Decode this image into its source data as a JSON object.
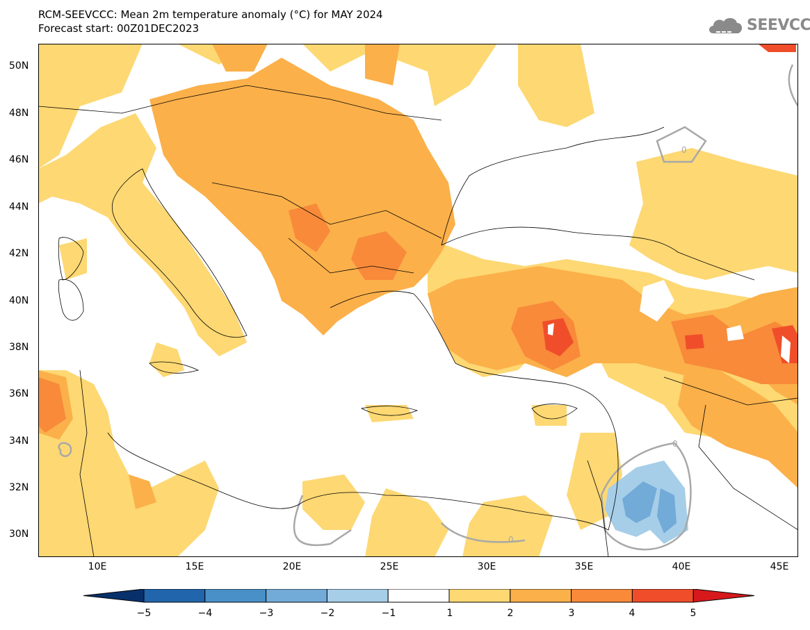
{
  "title": {
    "line1": "RCM-SEEVCCC: Mean 2m temperature anomaly (°C) for MAY 2024",
    "line2": "Forecast start: 00Z01DEC2023"
  },
  "logo": {
    "text": "SEEVCCC",
    "icon": "cloud-icon",
    "color": "#8a8a8a"
  },
  "map": {
    "lon_range": [
      7,
      46
    ],
    "lat_range": [
      29,
      51
    ],
    "lat_ticks": [
      "50N",
      "48N",
      "46N",
      "44N",
      "42N",
      "40N",
      "38N",
      "36N",
      "34N",
      "32N",
      "30N"
    ],
    "lon_ticks": [
      "10E",
      "15E",
      "20E",
      "25E",
      "30E",
      "35E",
      "40E",
      "45E"
    ],
    "contour_label": "0"
  },
  "colorbar": {
    "labels": [
      "−5",
      "−4",
      "−3",
      "−2",
      "−1",
      "1",
      "2",
      "3",
      "4",
      "5"
    ],
    "colors": [
      "#08306b",
      "#2166ac",
      "#4a90c8",
      "#72abd8",
      "#a6cee8",
      "#ffffff",
      "#fdd873",
      "#fbb04a",
      "#f88a3a",
      "#f04e2a",
      "#d7191c"
    ]
  }
}
